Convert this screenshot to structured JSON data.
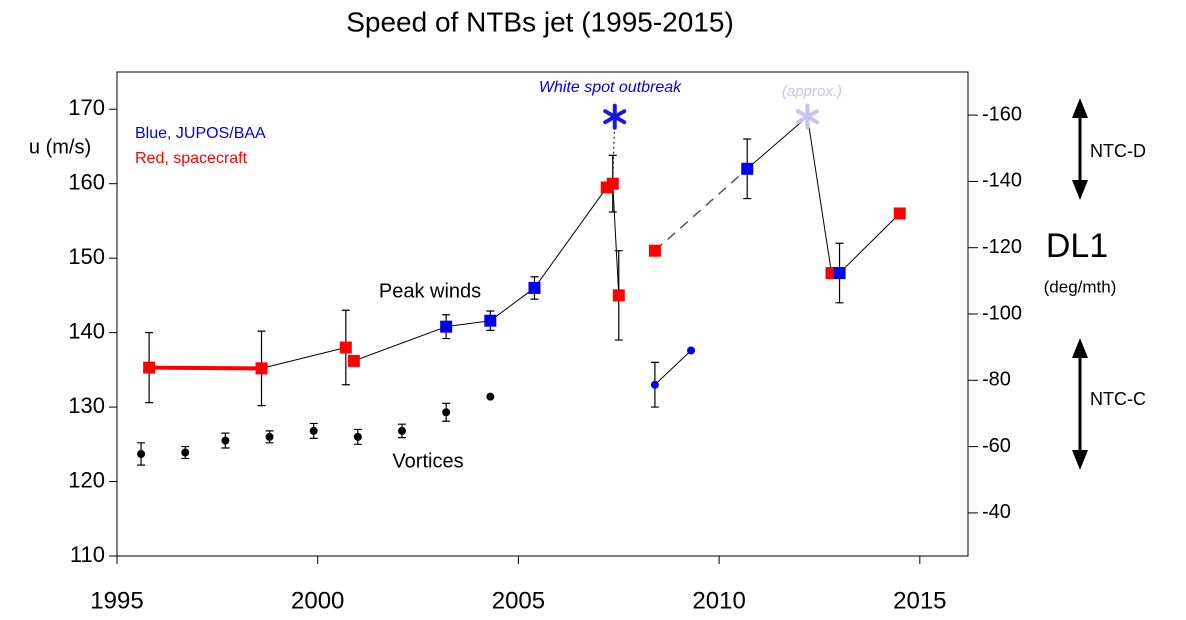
{
  "chart_data": {
    "type": "scatter",
    "title": "Speed of NTBs jet  (1995-2015)",
    "ylabel": "u (m/s)",
    "y2label": "DL1",
    "y2sublabel": "(deg/mth)",
    "xlim": [
      1995,
      2016.2
    ],
    "xticks": [
      1995,
      2000,
      2005,
      2010,
      2015
    ],
    "ylim": [
      110,
      175
    ],
    "yticks": [
      110,
      120,
      130,
      140,
      150,
      160,
      170
    ],
    "y2lim": [
      -27,
      -173
    ],
    "y2ticks": [
      -40,
      -60,
      -80,
      -100,
      -120,
      -140,
      -160
    ],
    "series": [
      {
        "name": "Red, spacecraft",
        "color": "#ff0000",
        "marker": "square",
        "x": [
          1995.8,
          1998.6,
          2000.7,
          2000.9,
          2007.2,
          2007.35,
          2007.5,
          2008.4,
          2012.8,
          2014.5
        ],
        "values": [
          135.3,
          135.2,
          138,
          136.2,
          159.5,
          160,
          145,
          151,
          148,
          156
        ],
        "errors": [
          4.7,
          5,
          5,
          null,
          null,
          3.8,
          6,
          null,
          null,
          null
        ]
      },
      {
        "name": "Blue, JUPOS/BAA",
        "color": "#0000ee",
        "marker": "square",
        "x": [
          2003.2,
          2004.3,
          2005.4,
          2010.7,
          2013.0
        ],
        "values": [
          140.8,
          141.6,
          146,
          162,
          148
        ],
        "errors": [
          1.6,
          1.3,
          1.5,
          4,
          4
        ]
      },
      {
        "color": "#0000ee",
        "marker": "dot",
        "x": [
          2008.4,
          2009.3
        ],
        "values": [
          133,
          137.6
        ],
        "errors": [
          3,
          null
        ]
      },
      {
        "name": "Vortices",
        "color": "#000000",
        "marker": "dot",
        "x": [
          1995.6,
          1996.7,
          1997.7,
          1998.8,
          1999.9,
          2001.0,
          2002.1,
          2003.2,
          2004.3
        ],
        "values": [
          123.7,
          123.9,
          125.5,
          126,
          126.8,
          126,
          126.8,
          129.3,
          131.4
        ],
        "errors": [
          1.5,
          0.8,
          1,
          0.8,
          1,
          1,
          0.9,
          1.2,
          null
        ]
      }
    ],
    "stars": [
      {
        "x": 2007.4,
        "y": 169,
        "color": "#1a1ad8"
      },
      {
        "x": 2012.2,
        "y": 169,
        "color": "#c4c4f0"
      }
    ],
    "annotations": {
      "outbreak": "White spot outbreak",
      "approx": "(approx.)",
      "peak": "Peak winds",
      "ntcd": "NTC-D",
      "ntcc": "NTC-C"
    }
  }
}
